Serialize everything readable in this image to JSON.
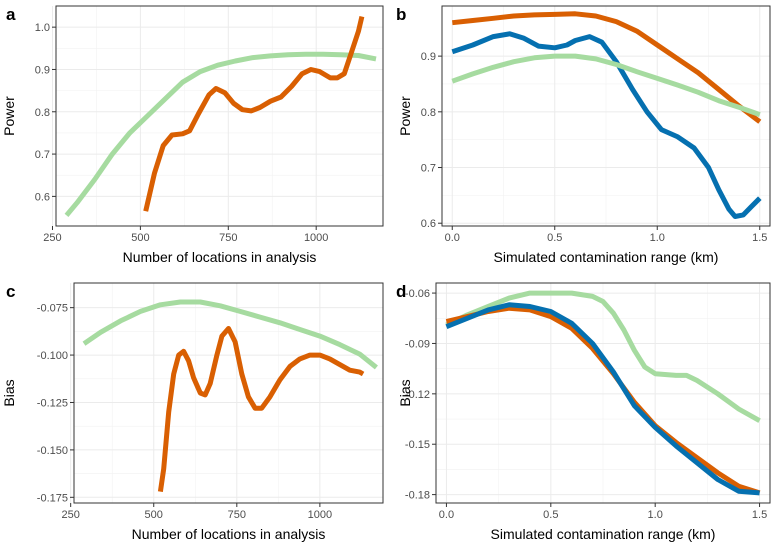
{
  "chart_data": [
    {
      "panel_label": "a",
      "type": "line",
      "xlabel": "Number of locations in analysis",
      "ylabel": "Power",
      "xlim": [
        260,
        1190
      ],
      "ylim": [
        0.53,
        1.05
      ],
      "xticks": [
        250,
        500,
        750,
        1000
      ],
      "yticks": [
        0.6,
        0.7,
        0.8,
        0.9,
        1.0
      ],
      "ytick_labels": [
        "0.6",
        "0.7",
        "0.8",
        "0.9",
        "1.0"
      ],
      "grid": true,
      "series": [
        {
          "color": "#a6dba0",
          "points": [
            [
              290,
              0.555
            ],
            [
              320,
              0.585
            ],
            [
              370,
              0.64
            ],
            [
              420,
              0.7
            ],
            [
              470,
              0.75
            ],
            [
              520,
              0.79
            ],
            [
              570,
              0.83
            ],
            [
              620,
              0.87
            ],
            [
              670,
              0.895
            ],
            [
              720,
              0.91
            ],
            [
              770,
              0.92
            ],
            [
              820,
              0.928
            ],
            [
              870,
              0.932
            ],
            [
              920,
              0.935
            ],
            [
              970,
              0.936
            ],
            [
              1020,
              0.936
            ],
            [
              1070,
              0.935
            ],
            [
              1120,
              0.933
            ],
            [
              1170,
              0.925
            ]
          ]
        },
        {
          "color": "#d95f02",
          "points": [
            [
              515,
              0.565
            ],
            [
              540,
              0.655
            ],
            [
              565,
              0.72
            ],
            [
              590,
              0.745
            ],
            [
              620,
              0.748
            ],
            [
              640,
              0.755
            ],
            [
              665,
              0.795
            ],
            [
              695,
              0.84
            ],
            [
              715,
              0.855
            ],
            [
              740,
              0.845
            ],
            [
              765,
              0.82
            ],
            [
              790,
              0.805
            ],
            [
              815,
              0.802
            ],
            [
              840,
              0.81
            ],
            [
              870,
              0.825
            ],
            [
              900,
              0.835
            ],
            [
              930,
              0.86
            ],
            [
              960,
              0.89
            ],
            [
              985,
              0.9
            ],
            [
              1010,
              0.895
            ],
            [
              1040,
              0.88
            ],
            [
              1060,
              0.88
            ],
            [
              1080,
              0.89
            ],
            [
              1100,
              0.94
            ],
            [
              1120,
              0.99
            ],
            [
              1130,
              1.025
            ]
          ]
        }
      ]
    },
    {
      "panel_label": "b",
      "type": "line",
      "xlabel": "Simulated contamination range (km)",
      "ylabel": "Power",
      "xlim": [
        -0.05,
        1.55
      ],
      "ylim": [
        0.595,
        0.99
      ],
      "xticks": [
        0.0,
        0.5,
        1.0,
        1.5
      ],
      "xtick_labels": [
        "0.0",
        "0.5",
        "1.0",
        "1.5"
      ],
      "yticks": [
        0.6,
        0.7,
        0.8,
        0.9
      ],
      "ytick_labels": [
        "0.6",
        "0.7",
        "0.8",
        "0.9"
      ],
      "grid": true,
      "series": [
        {
          "color": "#d95f02",
          "points": [
            [
              0.0,
              0.96
            ],
            [
              0.1,
              0.964
            ],
            [
              0.2,
              0.968
            ],
            [
              0.3,
              0.972
            ],
            [
              0.4,
              0.974
            ],
            [
              0.5,
              0.975
            ],
            [
              0.6,
              0.976
            ],
            [
              0.7,
              0.972
            ],
            [
              0.8,
              0.962
            ],
            [
              0.9,
              0.945
            ],
            [
              1.0,
              0.92
            ],
            [
              1.1,
              0.895
            ],
            [
              1.2,
              0.87
            ],
            [
              1.3,
              0.84
            ],
            [
              1.4,
              0.81
            ],
            [
              1.5,
              0.782
            ]
          ]
        },
        {
          "color": "#0570b0",
          "points": [
            [
              0.0,
              0.908
            ],
            [
              0.1,
              0.92
            ],
            [
              0.2,
              0.935
            ],
            [
              0.28,
              0.94
            ],
            [
              0.35,
              0.932
            ],
            [
              0.42,
              0.918
            ],
            [
              0.5,
              0.915
            ],
            [
              0.56,
              0.92
            ],
            [
              0.6,
              0.928
            ],
            [
              0.67,
              0.935
            ],
            [
              0.73,
              0.925
            ],
            [
              0.8,
              0.89
            ],
            [
              0.88,
              0.84
            ],
            [
              0.95,
              0.8
            ],
            [
              1.02,
              0.768
            ],
            [
              1.1,
              0.755
            ],
            [
              1.18,
              0.735
            ],
            [
              1.25,
              0.7
            ],
            [
              1.3,
              0.66
            ],
            [
              1.35,
              0.625
            ],
            [
              1.38,
              0.612
            ],
            [
              1.42,
              0.615
            ],
            [
              1.46,
              0.63
            ],
            [
              1.5,
              0.645
            ]
          ]
        },
        {
          "color": "#a6dba0",
          "points": [
            [
              0.0,
              0.855
            ],
            [
              0.1,
              0.868
            ],
            [
              0.2,
              0.88
            ],
            [
              0.3,
              0.89
            ],
            [
              0.4,
              0.897
            ],
            [
              0.5,
              0.9
            ],
            [
              0.6,
              0.9
            ],
            [
              0.7,
              0.895
            ],
            [
              0.8,
              0.885
            ],
            [
              0.9,
              0.872
            ],
            [
              1.0,
              0.86
            ],
            [
              1.1,
              0.848
            ],
            [
              1.2,
              0.835
            ],
            [
              1.3,
              0.82
            ],
            [
              1.4,
              0.808
            ],
            [
              1.5,
              0.795
            ]
          ]
        }
      ]
    },
    {
      "panel_label": "c",
      "type": "line",
      "xlabel": "Number of locations in analysis",
      "ylabel": "Bias",
      "xlim": [
        260,
        1190
      ],
      "ylim": [
        -0.178,
        -0.062
      ],
      "xticks": [
        250,
        500,
        750,
        1000
      ],
      "yticks": [
        -0.175,
        -0.15,
        -0.125,
        -0.1,
        -0.075
      ],
      "ytick_labels": [
        "-0.175",
        "-0.150",
        "-0.125",
        "-0.100",
        "-0.075"
      ],
      "grid": true,
      "series": [
        {
          "color": "#a6dba0",
          "points": [
            [
              290,
              -0.094
            ],
            [
              340,
              -0.088
            ],
            [
              400,
              -0.082
            ],
            [
              460,
              -0.077
            ],
            [
              520,
              -0.0735
            ],
            [
              580,
              -0.072
            ],
            [
              640,
              -0.072
            ],
            [
              700,
              -0.074
            ],
            [
              760,
              -0.077
            ],
            [
              820,
              -0.08
            ],
            [
              880,
              -0.083
            ],
            [
              940,
              -0.0865
            ],
            [
              1000,
              -0.09
            ],
            [
              1060,
              -0.0945
            ],
            [
              1120,
              -0.0995
            ],
            [
              1170,
              -0.1065
            ]
          ]
        },
        {
          "color": "#d95f02",
          "points": [
            [
              520,
              -0.172
            ],
            [
              530,
              -0.16
            ],
            [
              545,
              -0.13
            ],
            [
              560,
              -0.11
            ],
            [
              575,
              -0.1
            ],
            [
              590,
              -0.098
            ],
            [
              605,
              -0.103
            ],
            [
              620,
              -0.112
            ],
            [
              640,
              -0.12
            ],
            [
              655,
              -0.121
            ],
            [
              670,
              -0.115
            ],
            [
              690,
              -0.1
            ],
            [
              705,
              -0.09
            ],
            [
              725,
              -0.086
            ],
            [
              745,
              -0.093
            ],
            [
              765,
              -0.11
            ],
            [
              785,
              -0.122
            ],
            [
              805,
              -0.128
            ],
            [
              825,
              -0.128
            ],
            [
              850,
              -0.122
            ],
            [
              880,
              -0.113
            ],
            [
              910,
              -0.106
            ],
            [
              940,
              -0.102
            ],
            [
              970,
              -0.1
            ],
            [
              1000,
              -0.1
            ],
            [
              1030,
              -0.102
            ],
            [
              1060,
              -0.105
            ],
            [
              1090,
              -0.108
            ],
            [
              1120,
              -0.109
            ],
            [
              1130,
              -0.11
            ]
          ]
        }
      ]
    },
    {
      "panel_label": "d",
      "type": "line",
      "xlabel": "Simulated contamination range (km)",
      "ylabel": "Bias",
      "xlim": [
        -0.05,
        1.55
      ],
      "ylim": [
        -0.185,
        -0.054
      ],
      "xticks": [
        0.0,
        0.5,
        1.0,
        1.5
      ],
      "xtick_labels": [
        "0.0",
        "0.5",
        "1.0",
        "1.5"
      ],
      "yticks": [
        -0.18,
        -0.15,
        -0.12,
        -0.09,
        -0.06
      ],
      "ytick_labels": [
        "-0.18",
        "-0.15",
        "-0.12",
        "-0.09",
        "-0.06"
      ],
      "grid": true,
      "series": [
        {
          "color": "#a6dba0",
          "points": [
            [
              0.0,
              -0.079
            ],
            [
              0.1,
              -0.073
            ],
            [
              0.2,
              -0.068
            ],
            [
              0.3,
              -0.063
            ],
            [
              0.4,
              -0.06
            ],
            [
              0.5,
              -0.06
            ],
            [
              0.6,
              -0.06
            ],
            [
              0.7,
              -0.062
            ],
            [
              0.75,
              -0.065
            ],
            [
              0.8,
              -0.072
            ],
            [
              0.85,
              -0.082
            ],
            [
              0.9,
              -0.094
            ],
            [
              0.95,
              -0.104
            ],
            [
              1.0,
              -0.108
            ],
            [
              1.1,
              -0.109
            ],
            [
              1.15,
              -0.109
            ],
            [
              1.2,
              -0.112
            ],
            [
              1.3,
              -0.12
            ],
            [
              1.4,
              -0.129
            ],
            [
              1.5,
              -0.136
            ]
          ]
        },
        {
          "color": "#d95f02",
          "points": [
            [
              0.0,
              -0.077
            ],
            [
              0.1,
              -0.074
            ],
            [
              0.2,
              -0.071
            ],
            [
              0.3,
              -0.069
            ],
            [
              0.4,
              -0.07
            ],
            [
              0.5,
              -0.074
            ],
            [
              0.6,
              -0.081
            ],
            [
              0.7,
              -0.093
            ],
            [
              0.8,
              -0.108
            ],
            [
              0.9,
              -0.125
            ],
            [
              1.0,
              -0.139
            ],
            [
              1.1,
              -0.149
            ],
            [
              1.2,
              -0.158
            ],
            [
              1.3,
              -0.167
            ],
            [
              1.4,
              -0.175
            ],
            [
              1.5,
              -0.179
            ]
          ]
        },
        {
          "color": "#0570b0",
          "points": [
            [
              0.0,
              -0.08
            ],
            [
              0.1,
              -0.075
            ],
            [
              0.2,
              -0.07
            ],
            [
              0.3,
              -0.067
            ],
            [
              0.4,
              -0.068
            ],
            [
              0.5,
              -0.071
            ],
            [
              0.6,
              -0.078
            ],
            [
              0.7,
              -0.09
            ],
            [
              0.8,
              -0.107
            ],
            [
              0.9,
              -0.127
            ],
            [
              1.0,
              -0.14
            ],
            [
              1.1,
              -0.151
            ],
            [
              1.2,
              -0.161
            ],
            [
              1.3,
              -0.171
            ],
            [
              1.4,
              -0.178
            ],
            [
              1.5,
              -0.179
            ]
          ]
        }
      ]
    }
  ]
}
